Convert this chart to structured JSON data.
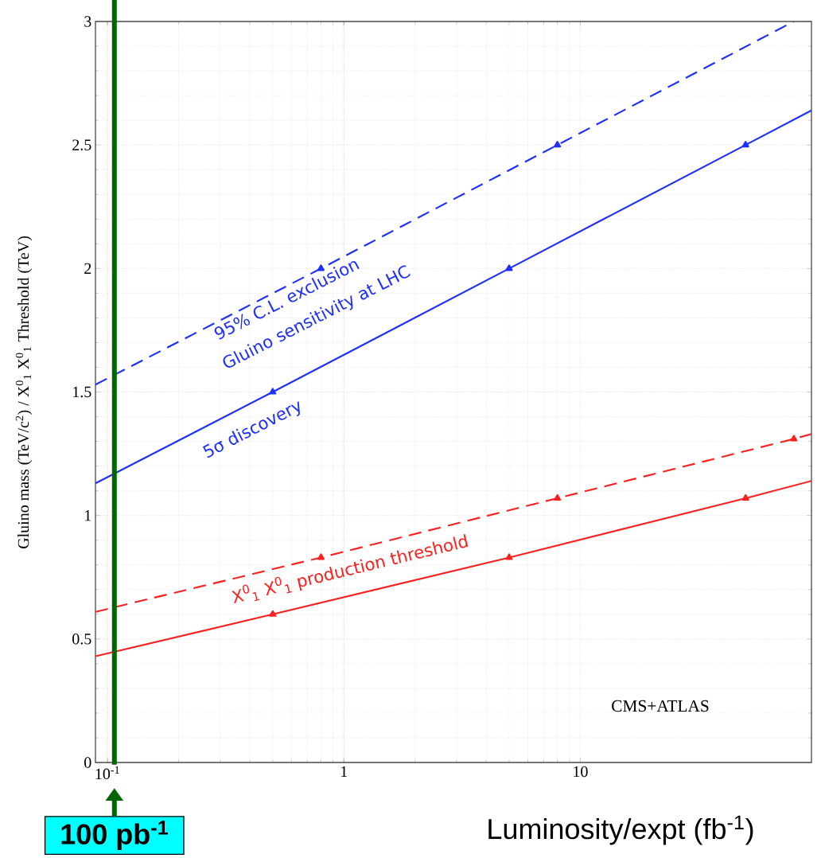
{
  "chart_data": {
    "type": "line",
    "xlabel": "Luminosity/expt (fb$^{-1}$)",
    "ylabel": "Gluino mass (TeV/c$^{2}$) / X$^{0}$$_{1}$ X$^{0}$$_{1}$ Threshold (TeV)",
    "series": [
      {
        "color": "#1f2fff",
        "line_style": "dashed",
        "x": [
          0.089,
          0.8,
          8,
          80
        ],
        "values": [
          1.53,
          2.0,
          2.5,
          3.0
        ]
      },
      {
        "color": "#1f2fff",
        "line_style": "solid",
        "x": [
          0.089,
          0.5,
          5,
          50,
          95
        ],
        "values": [
          1.13,
          1.5,
          2.0,
          2.5,
          2.64
        ]
      },
      {
        "color": "#ff2020",
        "line_style": "dashed",
        "x": [
          0.089,
          0.8,
          8,
          80,
          95
        ],
        "values": [
          0.61,
          0.83,
          1.07,
          1.31,
          1.33
        ]
      },
      {
        "color": "#ff2020",
        "line_style": "solid",
        "x": [
          0.089,
          0.5,
          5,
          50,
          95
        ],
        "values": [
          0.43,
          0.6,
          0.83,
          1.07,
          1.14
        ]
      }
    ],
    "annotations": [
      "95% C.L. exclusion",
      "Gluino sensitivity at LHC",
      "5σ discovery",
      "X$^{0}$$_{1}$ X$^{0}$$_{1}$ production threshold",
      "CMS+ATLAS"
    ],
    "ref_lines": [
      {
        "axis": "x",
        "value": 0.107,
        "label": "100 pb$^{-1}$",
        "color": "#006600"
      }
    ],
    "log": "x",
    "xlim": [
      0.089,
      95
    ],
    "ylim": [
      0,
      3
    ],
    "xticks": [
      {
        "value": 0.1,
        "label": "10$^{-1}$"
      },
      1,
      10
    ],
    "yticks": [
      0,
      0.5,
      1,
      1.5,
      2,
      2.5,
      3
    ],
    "grid": true,
    "marker": "triangle"
  }
}
